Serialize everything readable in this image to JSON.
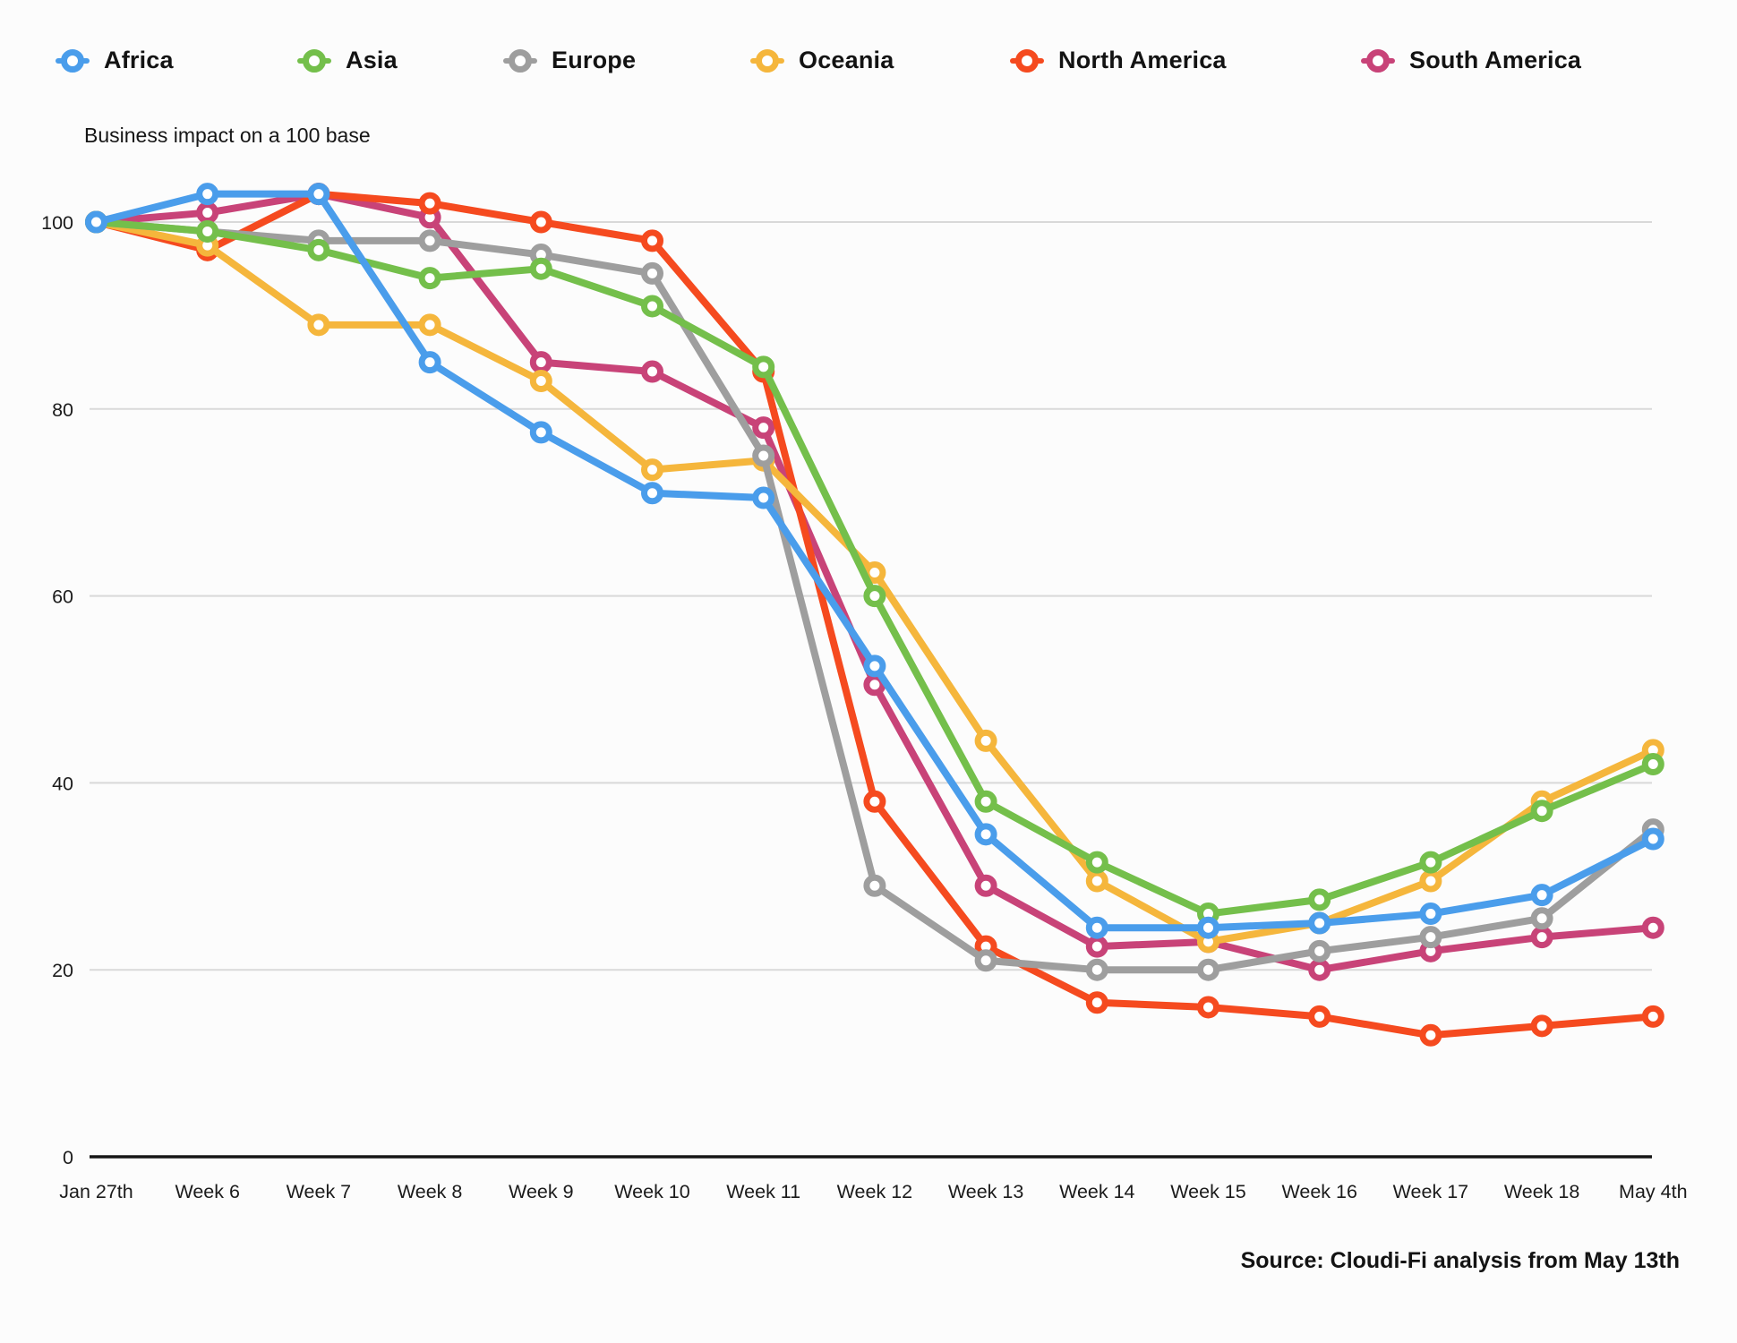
{
  "title": "Business impact on a 100 base",
  "source_note": "Source: Cloudi-Fi analysis from May 13th",
  "chart_data": {
    "type": "line",
    "title": "Business impact on a 100 base",
    "categories": [
      "Jan 27th",
      "Week 6",
      "Week 7",
      "Week 8",
      "Week 9",
      "Week 10",
      "Week 11",
      "Week 12",
      "Week 13",
      "Week 14",
      "Week 15",
      "Week 16",
      "Week 17",
      "Week 18",
      "May 4th"
    ],
    "yticks": [
      0,
      20,
      40,
      60,
      80,
      100
    ],
    "ylim": [
      0,
      105
    ],
    "grid": "horizontal",
    "legend_position": "top",
    "series": [
      {
        "name": "Africa",
        "color": "#4A9DEB",
        "values": [
          100,
          103,
          103,
          85,
          77.5,
          71,
          70.5,
          52.5,
          34.5,
          24.5,
          24.5,
          25,
          26,
          28,
          34
        ]
      },
      {
        "name": "Asia",
        "color": "#74BF4B",
        "values": [
          100,
          99,
          97,
          94,
          95,
          91,
          84.5,
          60,
          38,
          31.5,
          26,
          27.5,
          31.5,
          37,
          42
        ]
      },
      {
        "name": "Europe",
        "color": "#9E9E9E",
        "values": [
          100,
          99,
          98,
          98,
          96.5,
          94.5,
          75,
          29,
          21,
          20,
          20,
          22,
          23.5,
          25.5,
          35
        ]
      },
      {
        "name": "Oceania",
        "color": "#F5B63C",
        "values": [
          100,
          97.5,
          89,
          89,
          83,
          73.5,
          74.5,
          62.5,
          44.5,
          29.5,
          23,
          25,
          29.5,
          38,
          43.5
        ]
      },
      {
        "name": "North America",
        "color": "#F54A1F",
        "values": [
          100,
          97,
          103,
          102,
          100,
          98,
          84,
          38,
          22.5,
          16.5,
          16,
          15,
          13,
          14,
          15
        ]
      },
      {
        "name": "South America",
        "color": "#C84378",
        "values": [
          100,
          101,
          103,
          100.5,
          85,
          84,
          78,
          50.5,
          29,
          22.5,
          23,
          20,
          22,
          23.5,
          24.5
        ]
      }
    ]
  }
}
